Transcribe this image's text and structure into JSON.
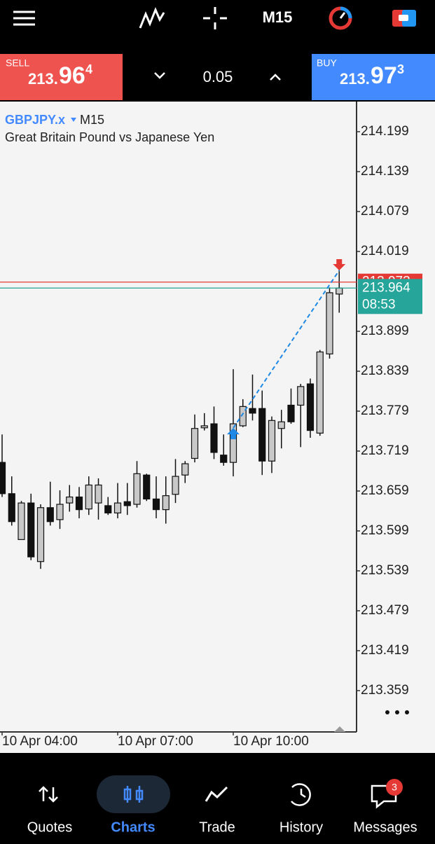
{
  "top_bar": {
    "timeframe": "M15"
  },
  "trade_bar": {
    "sell_label": "SELL",
    "sell_price_base": "213.",
    "sell_price_big": "96",
    "sell_pip": "4",
    "volume": "0.05",
    "buy_label": "BUY",
    "buy_price_base": "213.",
    "buy_price_big": "97",
    "buy_pip": "3"
  },
  "chart_data": {
    "type": "candlestick",
    "symbol": "GBPJPY.x",
    "timeframe": "M15",
    "subtitle": "Great Britain Pound vs Japanese Yen",
    "categories": [
      "10 Apr 04:00",
      null,
      null,
      null,
      null,
      null,
      null,
      null,
      null,
      null,
      null,
      null,
      "10 Apr 07:00",
      null,
      null,
      null,
      null,
      null,
      null,
      null,
      null,
      null,
      null,
      null,
      "10 Apr 10:00",
      null,
      null,
      null,
      null,
      null,
      null,
      null,
      null,
      null,
      null,
      null
    ],
    "open": [
      213.702,
      213.655,
      213.586,
      213.641,
      213.553,
      213.634,
      213.616,
      213.641,
      213.65,
      213.632,
      213.641,
      213.637,
      213.626,
      213.643,
      213.639,
      213.683,
      213.647,
      213.631,
      213.654,
      213.683,
      213.708,
      213.754,
      213.76,
      213.713,
      213.702,
      213.757,
      213.783,
      213.783,
      213.704,
      213.753,
      213.788,
      213.788,
      213.82,
      213.746,
      213.865,
      213.955
    ],
    "high": [
      213.744,
      213.681,
      213.644,
      213.655,
      213.639,
      213.673,
      213.66,
      213.668,
      213.665,
      213.681,
      213.678,
      213.65,
      213.671,
      213.671,
      213.704,
      213.685,
      213.681,
      213.681,
      213.707,
      213.704,
      213.774,
      213.776,
      213.786,
      213.744,
      213.842,
      213.797,
      213.834,
      213.81,
      213.771,
      213.781,
      213.813,
      213.82,
      213.828,
      213.871,
      213.965,
      214.002
    ],
    "low": [
      213.65,
      213.607,
      213.586,
      213.555,
      213.542,
      213.607,
      213.602,
      213.628,
      213.618,
      213.623,
      213.616,
      213.623,
      213.618,
      213.623,
      213.634,
      213.644,
      213.618,
      213.61,
      213.641,
      213.671,
      213.702,
      213.75,
      213.707,
      213.697,
      213.681,
      213.755,
      213.765,
      213.683,
      213.686,
      213.723,
      213.76,
      213.725,
      213.739,
      213.742,
      213.858,
      213.927
    ],
    "close": [
      213.655,
      213.613,
      213.641,
      213.56,
      213.634,
      213.613,
      213.639,
      213.65,
      213.631,
      213.668,
      213.668,
      213.626,
      213.641,
      213.637,
      213.685,
      213.647,
      213.631,
      213.652,
      213.681,
      213.7,
      213.753,
      213.757,
      213.717,
      213.702,
      213.76,
      213.786,
      213.776,
      213.704,
      213.765,
      213.763,
      213.763,
      213.816,
      213.75,
      213.868,
      213.957,
      213.964
    ],
    "up_color": "#c8c8c8",
    "down_color": "#111111",
    "ylim": [
      213.2969,
      214.2443
    ],
    "yticks": [
      214.199,
      214.139,
      214.079,
      214.019,
      213.899,
      213.839,
      213.779,
      213.719,
      213.659,
      213.599,
      213.539,
      213.479,
      213.419,
      213.359
    ],
    "bid": 213.964,
    "ask": 213.973,
    "bid_color": "#26a69a",
    "ask_color": "#e53935",
    "countdown": "08:53",
    "deal": {
      "buy": 213.741,
      "sell": 213.999
    }
  },
  "nav": {
    "items": [
      "Quotes",
      "Charts",
      "Trade",
      "History",
      "Messages"
    ],
    "active": 1,
    "badge": 3
  }
}
